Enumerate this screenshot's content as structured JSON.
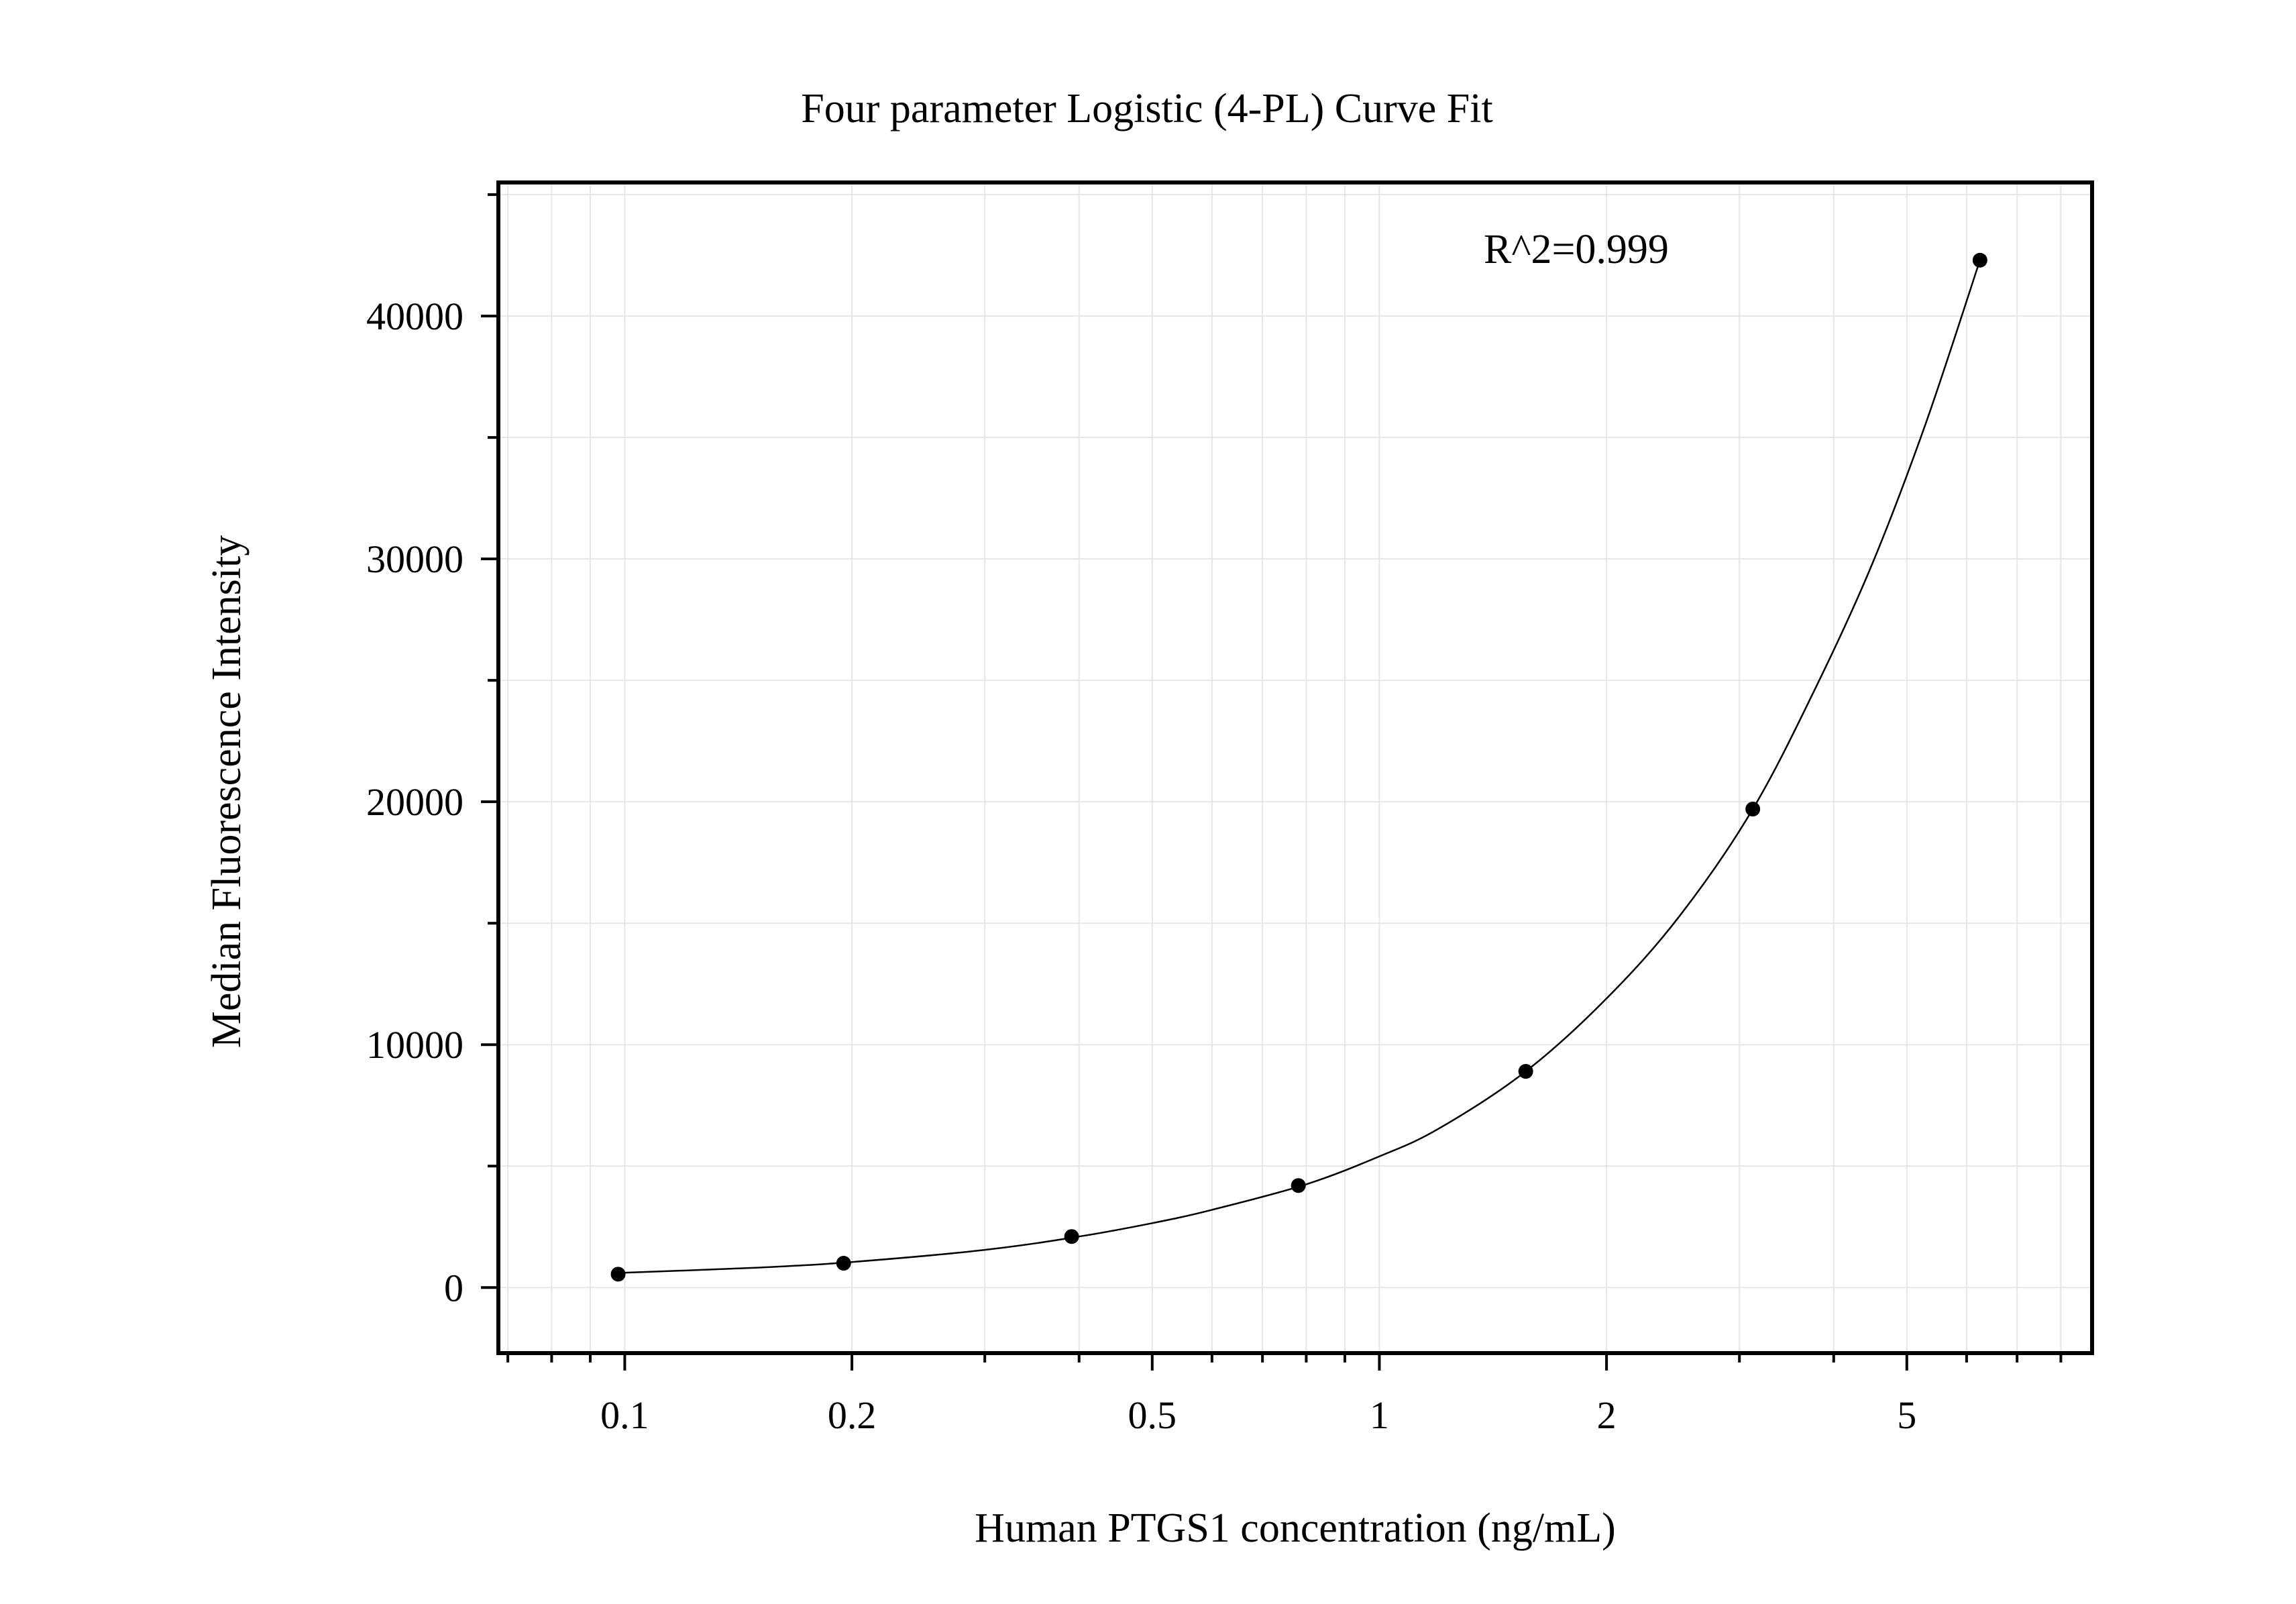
{
  "chart_data": {
    "type": "scatter",
    "title": "Four parameter Logistic (4-PL) Curve Fit",
    "xlabel": "Human PTGS1 concentration (ng/mL)",
    "ylabel": "Median Fluorescence Intensity",
    "x_scale": "log",
    "xlim": [
      0.068,
      8.8
    ],
    "ylim": [
      -2700,
      45500
    ],
    "x_ticks": [
      0.1,
      0.2,
      0.5,
      1,
      2,
      5
    ],
    "x_tick_labels": [
      "0.1",
      "0.2",
      "0.5",
      "1",
      "2",
      "5"
    ],
    "y_ticks": [
      0,
      10000,
      20000,
      30000,
      40000
    ],
    "y_tick_labels": [
      "0",
      "10000",
      "20000",
      "30000",
      "40000"
    ],
    "grid": true,
    "annotation": "R^2=0.999",
    "series": [
      {
        "x": [
          0.098,
          0.195,
          0.391,
          0.781,
          1.563,
          3.125,
          6.25
        ],
        "y": [
          550,
          1000,
          2100,
          4200,
          8900,
          19700,
          42300
        ]
      }
    ],
    "fit_curve": {
      "model": "4PL",
      "x": [
        0.098,
        0.15,
        0.2,
        0.3,
        0.4,
        0.5,
        0.6,
        0.8,
        1.0,
        1.2,
        1.563,
        2.0,
        2.5,
        3.125,
        3.8,
        4.5,
        5.3,
        6.25
      ],
      "y": [
        600,
        820,
        1050,
        1550,
        2100,
        2650,
        3200,
        4250,
        5400,
        6550,
        8900,
        11900,
        15300,
        19700,
        24800,
        29800,
        35600,
        42300
      ]
    }
  }
}
